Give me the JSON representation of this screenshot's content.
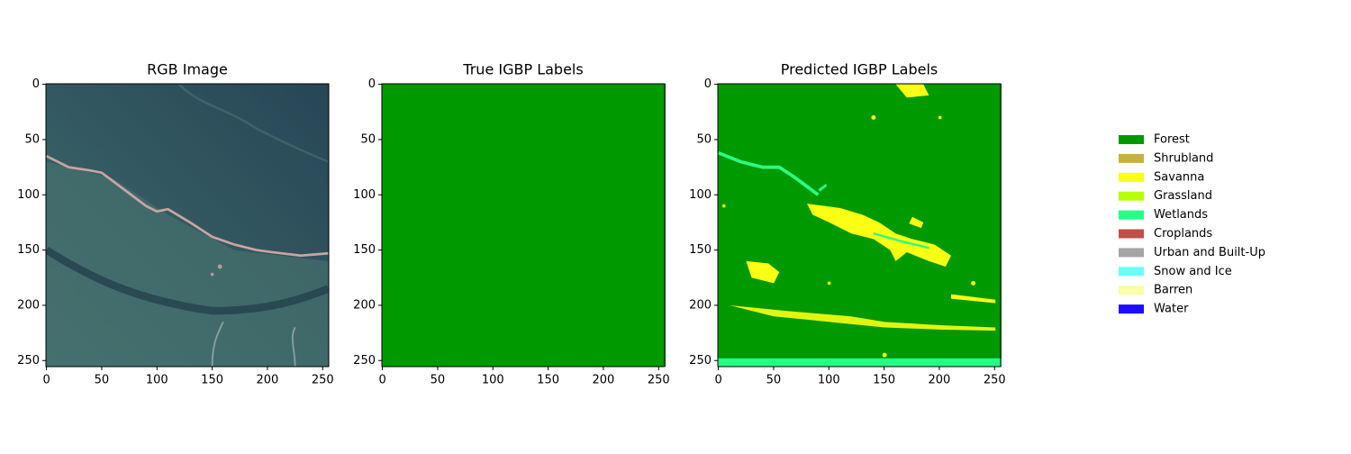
{
  "chart_data": [
    {
      "type": "image",
      "title": "RGB Image",
      "xlim": [
        -0.5,
        255.5
      ],
      "ylim": [
        255.5,
        -0.5
      ],
      "xticks": [
        0,
        50,
        100,
        150,
        200,
        250
      ],
      "yticks": [
        0,
        50,
        100,
        150,
        200,
        250
      ]
    },
    {
      "type": "image",
      "title": "True IGBP Labels",
      "xlim": [
        -0.5,
        255.5
      ],
      "ylim": [
        255.5,
        -0.5
      ],
      "xticks": [
        0,
        50,
        100,
        150,
        200,
        250
      ],
      "yticks": [
        0,
        50,
        100,
        150,
        200,
        250
      ]
    },
    {
      "type": "image",
      "title": "Predicted IGBP Labels",
      "xlim": [
        -0.5,
        255.5
      ],
      "ylim": [
        255.5,
        -0.5
      ],
      "xticks": [
        0,
        50,
        100,
        150,
        200,
        250
      ],
      "yticks": [
        0,
        50,
        100,
        150,
        200,
        250
      ]
    }
  ],
  "legend": [
    {
      "name": "Forest",
      "color": "#009900"
    },
    {
      "name": "Shrubland",
      "color": "#c6b044"
    },
    {
      "name": "Savanna",
      "color": "#fbff13"
    },
    {
      "name": "Grassland",
      "color": "#b6ff05"
    },
    {
      "name": "Wetlands",
      "color": "#27ff87"
    },
    {
      "name": "Croplands",
      "color": "#c24f44"
    },
    {
      "name": "Urban and Built-Up",
      "color": "#a5a5a5"
    },
    {
      "name": "Snow and Ice",
      "color": "#69fff8"
    },
    {
      "name": "Barren",
      "color": "#f9ffa4"
    },
    {
      "name": "Water",
      "color": "#1c0dff"
    }
  ]
}
